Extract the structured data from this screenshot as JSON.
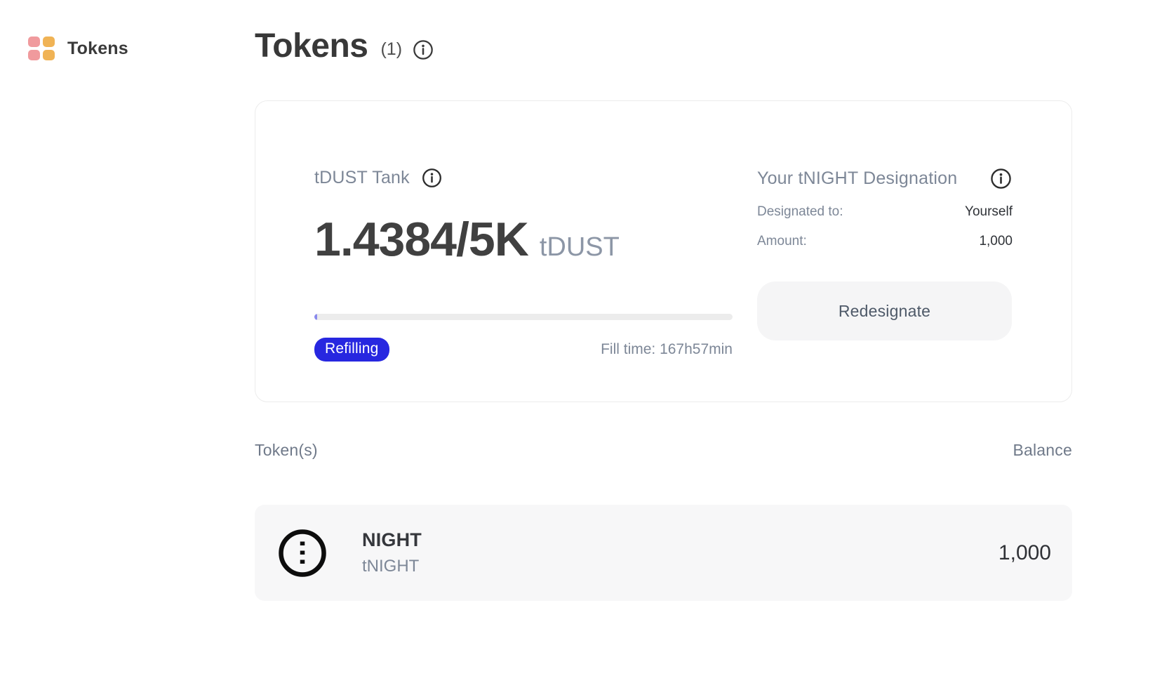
{
  "brand": {
    "app_label": "Tokens",
    "logo_colors": {
      "pink": "#f09a9d",
      "orange": "#f0b355"
    }
  },
  "header": {
    "title": "Tokens",
    "count_label": "(1)"
  },
  "tank_card": {
    "title": "tDUST Tank",
    "value": "1.4384/5K",
    "unit": "tDUST",
    "progress_percent": 0.03,
    "status_badge": "Refilling",
    "fill_time_label": "Fill time: 167h57min",
    "badge_color": "#2727e0"
  },
  "designation": {
    "title": "Your tNIGHT Designation",
    "rows": [
      {
        "label": "Designated to:",
        "value": "Yourself"
      },
      {
        "label": "Amount:",
        "value": "1,000"
      }
    ],
    "button_label": "Redesignate"
  },
  "token_list": {
    "header": {
      "tokens_label": "Token(s)",
      "balance_label": "Balance"
    },
    "items": [
      {
        "name": "NIGHT",
        "symbol": "tNIGHT",
        "balance": "1,000"
      }
    ]
  }
}
